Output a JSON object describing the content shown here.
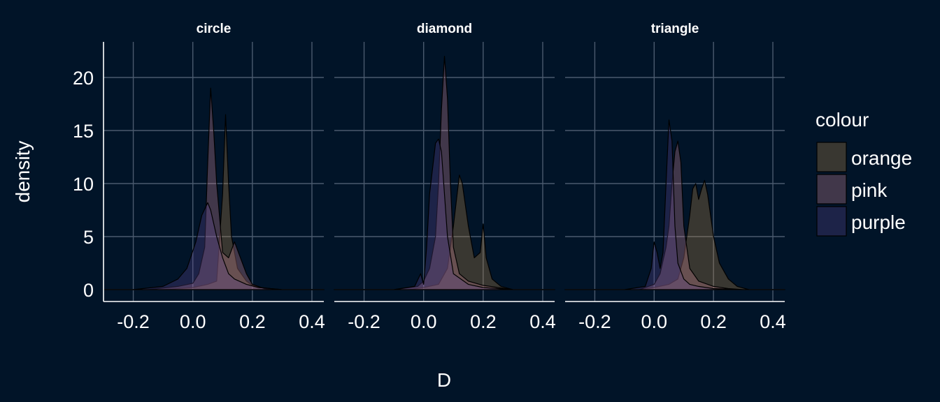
{
  "chart_data": {
    "type": "area",
    "xlabel": "D",
    "ylabel": "density",
    "xlim": [
      -0.3,
      0.44
    ],
    "ylim": [
      0,
      22.5
    ],
    "x_ticks": [
      "-0.2",
      "0.0",
      "0.2",
      "0.4"
    ],
    "y_ticks": [
      "0",
      "5",
      "10",
      "15",
      "20"
    ],
    "grid": true,
    "legend_position": "right",
    "legend_title": "colour",
    "fill_opacity": 0.3,
    "series_meta": [
      {
        "name": "orange",
        "color": "#bc8a4a"
      },
      {
        "name": "pink",
        "color": "#d68a9a"
      },
      {
        "name": "purple",
        "color": "#5f4a94"
      }
    ],
    "panels": [
      {
        "label": "circle",
        "series": [
          {
            "name": "orange",
            "x": [
              -0.3,
              -0.1,
              0,
              0.05,
              0.08,
              0.1,
              0.11,
              0.12,
              0.13,
              0.15,
              0.18,
              0.2,
              0.23,
              0.26,
              0.3,
              0.44
            ],
            "y": [
              0,
              0,
              0.2,
              0.5,
              0.8,
              9,
              16.5,
              10,
              5,
              2,
              0.8,
              0.4,
              0.2,
              0.1,
              0,
              0
            ]
          },
          {
            "name": "pink",
            "x": [
              -0.3,
              -0.15,
              -0.05,
              0,
              0.02,
              0.04,
              0.05,
              0.06,
              0.07,
              0.08,
              0.1,
              0.12,
              0.14,
              0.16,
              0.18,
              0.2,
              0.24,
              0.3,
              0.44
            ],
            "y": [
              0,
              0,
              0.3,
              0.6,
              1.5,
              4,
              12,
              19,
              15,
              10,
              3.5,
              3,
              4.5,
              3,
              1.5,
              0.5,
              0.1,
              0,
              0
            ]
          },
          {
            "name": "purple",
            "x": [
              -0.3,
              -0.2,
              -0.1,
              -0.05,
              -0.02,
              0.01,
              0.03,
              0.05,
              0.06,
              0.08,
              0.1,
              0.12,
              0.14,
              0.18,
              0.22,
              0.26,
              0.3,
              0.44
            ],
            "y": [
              0,
              0,
              0.3,
              1,
              2,
              4.5,
              7,
              8.2,
              7.5,
              5,
              3,
              1.5,
              1,
              0.5,
              0.2,
              0.1,
              0,
              0
            ]
          }
        ]
      },
      {
        "label": "diamond",
        "series": [
          {
            "name": "orange",
            "x": [
              -0.3,
              -0.05,
              0,
              0.05,
              0.08,
              0.1,
              0.12,
              0.13,
              0.15,
              0.17,
              0.19,
              0.2,
              0.21,
              0.23,
              0.26,
              0.3,
              0.44
            ],
            "y": [
              0,
              0,
              0.2,
              0.5,
              2,
              6,
              10.8,
              10,
              6,
              3,
              3.5,
              6.2,
              3,
              1,
              0.3,
              0,
              0
            ]
          },
          {
            "name": "pink",
            "x": [
              -0.3,
              -0.1,
              -0.02,
              0,
              0.02,
              0.04,
              0.05,
              0.06,
              0.07,
              0.08,
              0.09,
              0.1,
              0.12,
              0.15,
              0.2,
              0.25,
              0.3,
              0.44
            ],
            "y": [
              0,
              0,
              0.3,
              0.8,
              2,
              5,
              10,
              17,
              22,
              18,
              10,
              4,
              1.5,
              0.8,
              0.4,
              0.2,
              0,
              0
            ]
          },
          {
            "name": "purple",
            "x": [
              -0.3,
              -0.1,
              -0.03,
              -0.01,
              0,
              0.01,
              0.02,
              0.04,
              0.05,
              0.06,
              0.08,
              0.1,
              0.15,
              0.2,
              0.3,
              0.44
            ],
            "y": [
              0,
              0,
              0.3,
              1.5,
              0.5,
              4,
              9,
              13.8,
              14.2,
              13,
              5,
              1.5,
              0.5,
              0.2,
              0,
              0
            ]
          }
        ]
      },
      {
        "label": "triangle",
        "series": [
          {
            "name": "orange",
            "x": [
              -0.3,
              -0.05,
              0,
              0.05,
              0.08,
              0.1,
              0.12,
              0.13,
              0.14,
              0.15,
              0.16,
              0.17,
              0.18,
              0.2,
              0.22,
              0.25,
              0.28,
              0.32,
              0.44
            ],
            "y": [
              0,
              0,
              0.2,
              0.5,
              1,
              3,
              7,
              9.5,
              10,
              8.5,
              9.5,
              10.3,
              9,
              5,
              2.5,
              1,
              0.3,
              0,
              0
            ]
          },
          {
            "name": "pink",
            "x": [
              -0.3,
              -0.05,
              0,
              0.02,
              0.04,
              0.05,
              0.06,
              0.07,
              0.08,
              0.09,
              0.1,
              0.12,
              0.15,
              0.2,
              0.25,
              0.3,
              0.44
            ],
            "y": [
              0,
              0,
              0.5,
              1.5,
              4,
              6,
              10,
              13,
              14,
              12,
              6,
              2,
              0.8,
              0.3,
              0.1,
              0,
              0
            ]
          },
          {
            "name": "purple",
            "x": [
              -0.3,
              -0.1,
              -0.03,
              -0.01,
              0,
              0.01,
              0.02,
              0.03,
              0.04,
              0.05,
              0.06,
              0.07,
              0.08,
              0.1,
              0.12,
              0.15,
              0.2,
              0.3,
              0.44
            ],
            "y": [
              0,
              0,
              0.3,
              2,
              4.5,
              3.5,
              2,
              3.5,
              10,
              16,
              14,
              6,
              2.5,
              1,
              0.5,
              0.3,
              0.1,
              0,
              0
            ]
          }
        ]
      }
    ]
  }
}
